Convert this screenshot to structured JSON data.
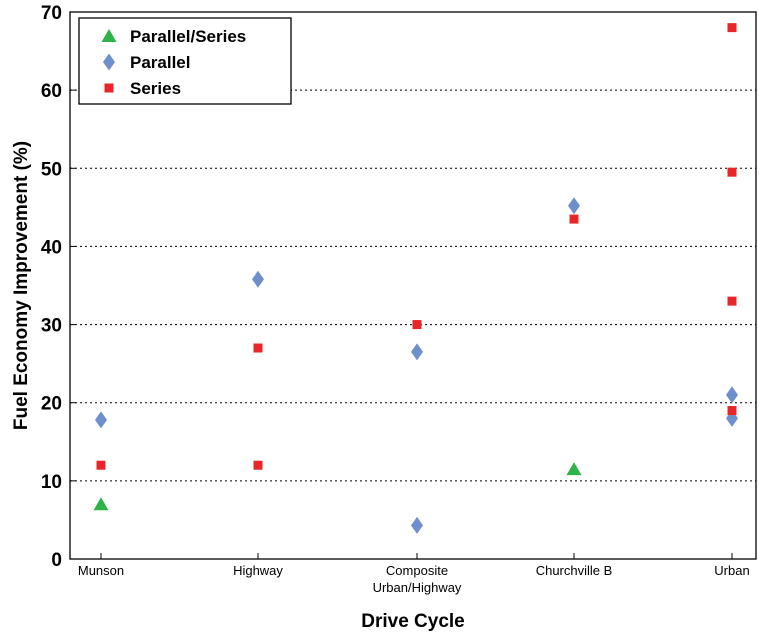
{
  "chart_data": {
    "type": "scatter",
    "xlabel": "Drive Cycle",
    "ylabel": "Fuel Economy Improvement (%)",
    "ylim": [
      0,
      70
    ],
    "yticks": [
      0,
      10,
      20,
      30,
      40,
      50,
      60,
      70
    ],
    "grid": "horizontal dotted",
    "legend_position": "top-left",
    "categories": [
      [
        "Munson"
      ],
      [
        "Highway"
      ],
      [
        "Composite",
        "Urban/Highway"
      ],
      [
        "Churchville B"
      ],
      [
        "Urban"
      ]
    ],
    "series": [
      {
        "name": "Parallel/Series",
        "marker": "triangle",
        "color": "#2db34a",
        "points": [
          {
            "x": 0,
            "y": 7
          },
          {
            "x": 3,
            "y": 11.5
          }
        ]
      },
      {
        "name": "Parallel",
        "marker": "diamond",
        "color": "#6f8fcc",
        "points": [
          {
            "x": 0,
            "y": 17.8
          },
          {
            "x": 1,
            "y": 35.8
          },
          {
            "x": 2,
            "y": 26.5
          },
          {
            "x": 2,
            "y": 4.3
          },
          {
            "x": 3,
            "y": 45.2
          },
          {
            "x": 4,
            "y": 21
          },
          {
            "x": 4,
            "y": 18
          }
        ]
      },
      {
        "name": "Series",
        "marker": "square",
        "color": "#e8262a",
        "points": [
          {
            "x": 0,
            "y": 12
          },
          {
            "x": 1,
            "y": 27
          },
          {
            "x": 1,
            "y": 12
          },
          {
            "x": 2,
            "y": 30
          },
          {
            "x": 3,
            "y": 43.5
          },
          {
            "x": 4,
            "y": 68
          },
          {
            "x": 4,
            "y": 49.5
          },
          {
            "x": 4,
            "y": 33
          },
          {
            "x": 4,
            "y": 19
          }
        ]
      }
    ]
  }
}
